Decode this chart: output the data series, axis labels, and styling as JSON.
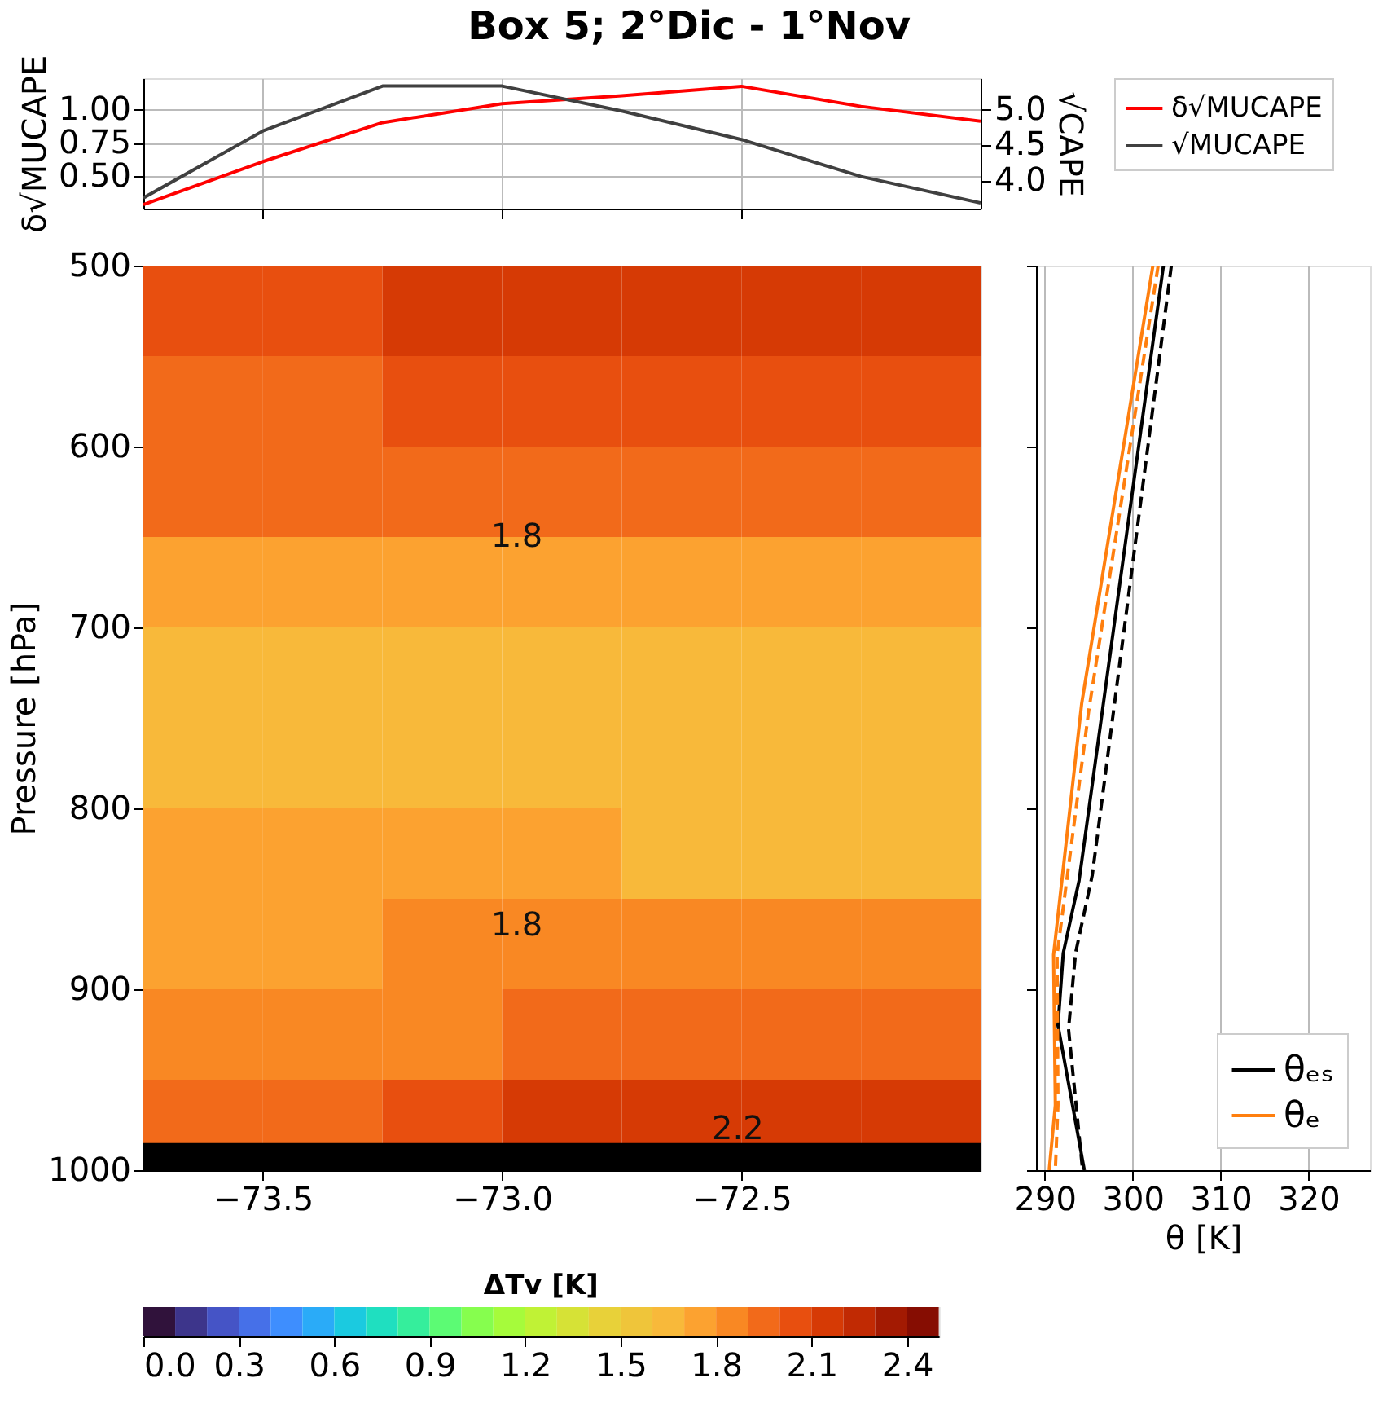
{
  "chart_data": [
    {
      "type": "line",
      "title": "Box 5; 2°Dic - 1°Nov",
      "ylabel": "δ√MUCAPE",
      "y2label": "√CAPE",
      "x": [
        -73.75,
        -73.5,
        -73.25,
        -73.0,
        -72.75,
        -72.5,
        -72.25,
        -72.0
      ],
      "series": [
        {
          "name": "δ√MUCAPE",
          "color": "#ff0000",
          "values": [
            0.29,
            0.61,
            0.9,
            1.04,
            1.1,
            1.17,
            1.02,
            0.91
          ]
        },
        {
          "name": "√MUCAPE",
          "color": "#404040",
          "axis": "y2",
          "values": [
            3.75,
            4.69,
            5.32,
            5.32,
            4.97,
            4.57,
            4.05,
            3.68
          ]
        }
      ],
      "xlim": [
        -73.75,
        -72.0
      ],
      "xticks": [
        {
          "value": -73.5,
          "label": null
        },
        {
          "value": -73.0,
          "label": null
        },
        {
          "value": -72.5,
          "label": null
        }
      ],
      "ylim": [
        0.26,
        1.23
      ],
      "yticks": [
        {
          "value": 0.5,
          "label": "0.50"
        },
        {
          "value": 0.75,
          "label": "0.75"
        },
        {
          "value": 1.0,
          "label": "1.00"
        }
      ],
      "y2lim": [
        3.6,
        5.43
      ],
      "y2ticks": [
        {
          "value": 4.0,
          "label": "4.0"
        },
        {
          "value": 4.5,
          "label": "4.5"
        },
        {
          "value": 5.0,
          "label": "5.0"
        }
      ],
      "grid": true,
      "legend": "right",
      "tick_labels": "y"
    },
    {
      "type": "heatmap",
      "ylabel": "Pressure [hPa]",
      "clabel": "ΔTv [K]",
      "x": [
        -73.625,
        -73.375,
        -73.125,
        -72.875,
        -72.625,
        -72.375,
        -72.125
      ],
      "y": [
        525,
        575,
        625,
        675,
        725,
        775,
        825,
        875,
        925,
        975
      ],
      "cells": [
        [
          2.05,
          2.08,
          2.1,
          2.12,
          2.15,
          2.15,
          2.12
        ],
        [
          1.98,
          1.98,
          2.0,
          2.0,
          2.02,
          2.02,
          2.02
        ],
        [
          1.9,
          1.9,
          1.9,
          1.9,
          1.9,
          1.9,
          1.9
        ],
        [
          1.75,
          1.75,
          1.75,
          1.75,
          1.75,
          1.75,
          1.75
        ],
        [
          1.65,
          1.65,
          1.65,
          1.65,
          1.65,
          1.65,
          1.65
        ],
        [
          1.65,
          1.65,
          1.65,
          1.65,
          1.65,
          1.65,
          1.65
        ],
        [
          1.72,
          1.72,
          1.7,
          1.7,
          1.68,
          1.67,
          1.66
        ],
        [
          1.76,
          1.78,
          1.82,
          1.82,
          1.82,
          1.82,
          1.82
        ],
        [
          1.8,
          1.85,
          1.88,
          1.9,
          1.92,
          1.92,
          1.92
        ],
        [
          1.9,
          1.98,
          2.08,
          2.15,
          2.18,
          2.18,
          2.15
        ]
      ],
      "colors": [
        "#30123b",
        "#3d358b",
        "#4554c6",
        "#4670e8",
        "#3e8efe",
        "#2aabf8",
        "#1bcae0",
        "#1fdfc0",
        "#35ee9c",
        "#5cfb74",
        "#86fe4e",
        "#a6fb3b",
        "#c0f235",
        "#d6e236",
        "#e8d139",
        "#efc53a",
        "#f8b93a",
        "#fca230",
        "#f98823",
        "#f26a1a",
        "#e84f0f",
        "#d63a05",
        "#c12a03",
        "#a31a02",
        "#860d02"
      ],
      "clim": [
        0.0,
        2.5
      ],
      "cticks": [
        {
          "value": 0.0,
          "label": "0.0"
        },
        {
          "value": 0.3,
          "label": "0.3"
        },
        {
          "value": 0.6,
          "label": "0.6"
        },
        {
          "value": 0.9,
          "label": "0.9"
        },
        {
          "value": 1.2,
          "label": "1.2"
        },
        {
          "value": 1.5,
          "label": "1.5"
        },
        {
          "value": 1.8,
          "label": "1.8"
        },
        {
          "value": 2.1,
          "label": "2.1"
        },
        {
          "value": 2.4,
          "label": "2.4"
        }
      ],
      "xlim": [
        -73.75,
        -72.0
      ],
      "xticks": [
        {
          "value": -73.5,
          "label": "−73.5"
        },
        {
          "value": -73.0,
          "label": "−73.0"
        },
        {
          "value": -72.5,
          "label": "−72.5"
        }
      ],
      "ylim": [
        1000,
        500
      ],
      "yticks": [
        500,
        600,
        700,
        800,
        900,
        1000
      ],
      "bands": [
        {
          "axis": "y",
          "from": 985,
          "to": 1000,
          "color": "#000000"
        }
      ],
      "annotations": [
        "1.8",
        "1.8",
        "2.2"
      ]
    },
    {
      "type": "line",
      "xlabel": "θ [K]",
      "series": [
        {
          "name": "θₑₛ",
          "color": "#000000",
          "x": [
            303.5,
            293.9,
            292.1,
            291.5,
            294.5
          ],
          "values": [
            500,
            840,
            880,
            920,
            1000
          ]
        },
        {
          "color": "#000000",
          "line_style": "dashed",
          "x": [
            304.4,
            295.4,
            293.5,
            292.7,
            294.3
          ],
          "values": [
            500,
            837,
            880,
            922,
            1000
          ]
        },
        {
          "name": "θₑ",
          "color": "#ff7f0e",
          "x": [
            302.3,
            294.2,
            291.0,
            291.2,
            290.5
          ],
          "values": [
            500,
            742,
            881,
            964,
            1000
          ]
        },
        {
          "color": "#ff7f0e",
          "line_style": "dashed",
          "x": [
            302.9,
            295.0,
            291.4,
            291.5,
            291.2
          ],
          "values": [
            500,
            746,
            881,
            964,
            1000
          ]
        }
      ],
      "xlim": [
        289,
        327
      ],
      "xticks": [
        290,
        300,
        310,
        320
      ],
      "ylim": [
        1000,
        500
      ],
      "yticks": [
        500,
        600,
        700,
        800,
        900,
        1000
      ],
      "grid": "x",
      "legend": "bottom right",
      "tick_labels": "x"
    }
  ]
}
